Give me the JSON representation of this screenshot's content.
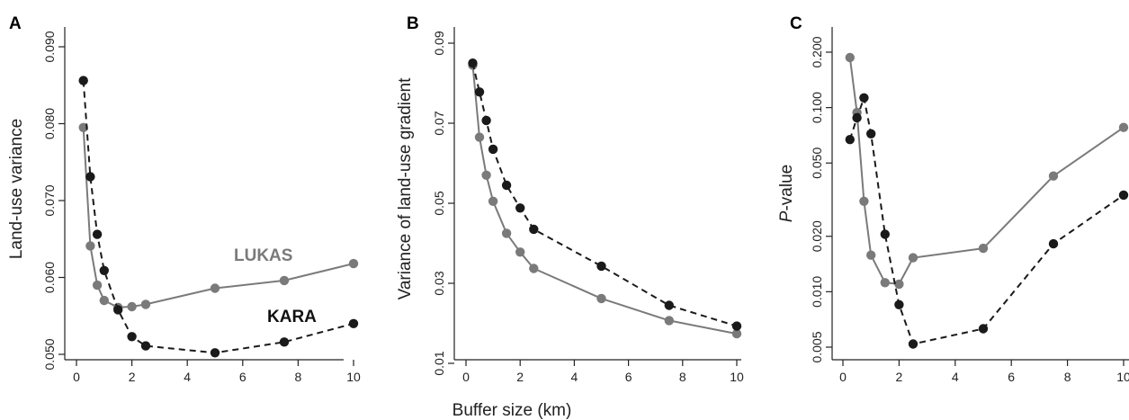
{
  "colors": {
    "lukas": "#7a7a7a",
    "kara": "#1a1a1a",
    "axis": "#222222"
  },
  "chart_data": [
    {
      "type": "line",
      "panel": "A",
      "xlabel": "",
      "ylabel": "Land-use variance",
      "xlim": [
        0,
        10
      ],
      "ylim": [
        0.05,
        0.09
      ],
      "yscale": "linear",
      "xticks": [
        0,
        2,
        4,
        6,
        8,
        10
      ],
      "xtick_labels": [
        "0",
        "2",
        "4",
        "6",
        "8",
        "10"
      ],
      "yticks": [
        0.05,
        0.06,
        0.07,
        0.08,
        0.09
      ],
      "ytick_labels": [
        "0.050",
        "0.060",
        "0.070",
        "0.080",
        "0.090"
      ],
      "annotations": [
        {
          "text": "LUKAS",
          "series": "lukas"
        },
        {
          "text": "KARA",
          "series": "kara"
        }
      ],
      "series": [
        {
          "name": "LUKAS",
          "style": "solid",
          "color": "#7a7a7a",
          "x": [
            0.25,
            0.5,
            0.75,
            1,
            1.5,
            2,
            2.5,
            5,
            7.5,
            10
          ],
          "y": [
            0.0795,
            0.0641,
            0.059,
            0.057,
            0.0561,
            0.0562,
            0.0565,
            0.0586,
            0.0596,
            0.0618
          ]
        },
        {
          "name": "KARA",
          "style": "dashed",
          "color": "#1a1a1a",
          "x": [
            0.25,
            0.5,
            0.75,
            1,
            1.5,
            2,
            2.5,
            5,
            7.5,
            10
          ],
          "y": [
            0.0856,
            0.0731,
            0.0656,
            0.0609,
            0.0558,
            0.0523,
            0.0511,
            0.0502,
            0.0516,
            0.054
          ]
        }
      ]
    },
    {
      "type": "line",
      "panel": "B",
      "xlabel": "Buffer size (km)",
      "ylabel": "Variance of land-use gradient",
      "xlim": [
        0,
        10
      ],
      "ylim": [
        0.01,
        0.09
      ],
      "yscale": "linear",
      "xticks": [
        0,
        2,
        4,
        6,
        8,
        10
      ],
      "xtick_labels": [
        "0",
        "2",
        "4",
        "6",
        "8",
        "10"
      ],
      "yticks": [
        0.01,
        0.03,
        0.05,
        0.07,
        0.09
      ],
      "ytick_labels": [
        "0.01",
        "0.03",
        "0.05",
        "0.07",
        "0.09"
      ],
      "series": [
        {
          "name": "",
          "style": "solid",
          "color": "#7a7a7a",
          "x": [
            0.25,
            0.5,
            0.75,
            1,
            1.5,
            2,
            2.5,
            5,
            7.5,
            10
          ],
          "y": [
            0.0845,
            0.0665,
            0.057,
            0.0505,
            0.0425,
            0.0378,
            0.0337,
            0.0262,
            0.0207,
            0.0174
          ]
        },
        {
          "name": "",
          "style": "dashed",
          "color": "#1a1a1a",
          "x": [
            0.25,
            0.5,
            0.75,
            1,
            1.5,
            2,
            2.5,
            5,
            7.5,
            10
          ],
          "y": [
            0.085,
            0.0778,
            0.0707,
            0.0635,
            0.0545,
            0.0488,
            0.0435,
            0.0343,
            0.0245,
            0.0193
          ]
        }
      ]
    },
    {
      "type": "line",
      "panel": "C",
      "xlabel": "",
      "ylabel": "P-value",
      "ylabel_italic": "P",
      "ylabel_rest": "-value",
      "xlim": [
        0,
        10
      ],
      "ylim": [
        0.005,
        0.2
      ],
      "yscale": "log",
      "xticks": [
        0,
        2,
        4,
        6,
        8,
        10
      ],
      "xtick_labels": [
        "0",
        "2",
        "4",
        "6",
        "8",
        "10"
      ],
      "yticks": [
        0.005,
        0.01,
        0.02,
        0.05,
        0.1,
        0.2
      ],
      "ytick_labels": [
        "0.005",
        "0.010",
        "0.020",
        "0.050",
        "0.100",
        "0.200"
      ],
      "series": [
        {
          "name": "",
          "style": "solid",
          "color": "#7a7a7a",
          "x": [
            0.25,
            0.5,
            0.75,
            1,
            1.5,
            2,
            2.5,
            5,
            7.5,
            10
          ],
          "y": [
            0.187,
            0.094,
            0.031,
            0.0158,
            0.0112,
            0.011,
            0.0153,
            0.0172,
            0.0425,
            0.078
          ]
        },
        {
          "name": "",
          "style": "dashed",
          "color": "#1a1a1a",
          "x": [
            0.25,
            0.5,
            0.75,
            1,
            1.5,
            2,
            2.5,
            5,
            7.5,
            10
          ],
          "y": [
            0.067,
            0.088,
            0.113,
            0.072,
            0.0205,
            0.0085,
            0.0052,
            0.0063,
            0.0182,
            0.0335
          ]
        }
      ]
    }
  ]
}
